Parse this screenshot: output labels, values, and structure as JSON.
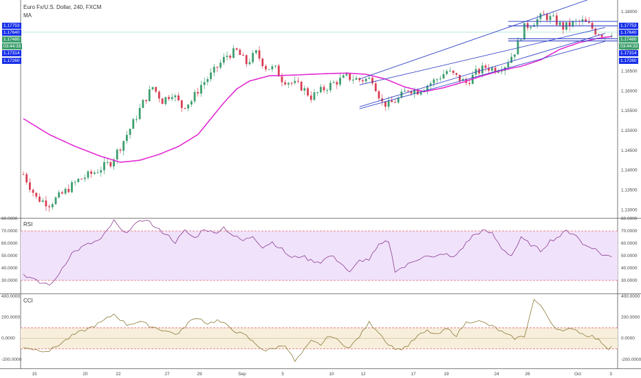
{
  "header": {
    "symbol": "Euro Fx/U.S. Dollar, 240, FXCM",
    "indicator": "MA"
  },
  "colors": {
    "up": "#3c9e6e",
    "down": "#d83e51",
    "ma": "#e22ad2",
    "channel": "#3545c8",
    "rsi_line": "#8a3b8f",
    "rsi_fill": "#f0e2fb",
    "cci_line": "#8b7a36",
    "cci_fill": "#f7eedc",
    "cci_band": "#e06565",
    "tag_blue": "#1830e8",
    "tag_green": "#3c9e6e"
  },
  "price_tags_left": [
    "1.17753",
    "1.17640",
    "1.17480",
    "03:44:33",
    "1.17314",
    "1.17260"
  ],
  "price_tags_right": [
    "1.17753",
    "1.17640",
    "1.17480",
    "03:44:33",
    "1.17314",
    "1.17260"
  ],
  "x_axis_labels": [
    "15",
    "20",
    "22",
    "27",
    "29",
    "Sep",
    "5",
    "10",
    "12",
    "17",
    "19",
    "24",
    "26",
    "Oct",
    "3"
  ],
  "chart_data": [
    {
      "type": "candlestick",
      "title": "Euro Fx/U.S. Dollar, 240, FXCM",
      "y_ticks": [
        "1.18000",
        "1.17500",
        "1.17000",
        "1.16500",
        "1.16000",
        "1.15500",
        "1.15000",
        "1.14500",
        "1.14000",
        "1.13500",
        "1.13000"
      ],
      "ylim": [
        1.1285,
        1.1805
      ],
      "x_labels": [
        "15",
        "20",
        "22",
        "27",
        "29",
        "Sep",
        "5",
        "10",
        "12",
        "17",
        "19",
        "24",
        "26",
        "Oct",
        "3"
      ],
      "close_path": [
        [
          0,
          1.139
        ],
        [
          4,
          1.133
        ],
        [
          8,
          1.1315
        ],
        [
          12,
          1.134
        ],
        [
          17,
          1.1375
        ],
        [
          22,
          1.1395
        ],
        [
          27,
          1.142
        ],
        [
          30,
          1.146
        ],
        [
          34,
          1.152
        ],
        [
          37,
          1.157
        ],
        [
          40,
          1.161
        ],
        [
          43,
          1.1575
        ],
        [
          46,
          1.1595
        ],
        [
          49,
          1.156
        ],
        [
          52,
          1.1575
        ],
        [
          55,
          1.1615
        ],
        [
          58,
          1.164
        ],
        [
          61,
          1.167
        ],
        [
          63,
          1.169
        ],
        [
          66,
          1.17
        ],
        [
          69,
          1.167
        ],
        [
          72,
          1.1695
        ],
        [
          75,
          1.166
        ],
        [
          78,
          1.1655
        ],
        [
          80,
          1.163
        ],
        [
          83,
          1.162
        ],
        [
          86,
          1.161
        ],
        [
          89,
          1.1585
        ],
        [
          92,
          1.16
        ],
        [
          96,
          1.162
        ],
        [
          100,
          1.1635
        ],
        [
          104,
          1.1628
        ],
        [
          108,
          1.163
        ],
        [
          111,
          1.157
        ],
        [
          113,
          1.1565
        ],
        [
          116,
          1.158
        ],
        [
          119,
          1.1605
        ],
        [
          122,
          1.16
        ],
        [
          125,
          1.1615
        ],
        [
          128,
          1.163
        ],
        [
          131,
          1.165
        ],
        [
          134,
          1.1635
        ],
        [
          137,
          1.162
        ],
        [
          140,
          1.1645
        ],
        [
          143,
          1.166
        ],
        [
          146,
          1.1655
        ],
        [
          149,
          1.1665
        ],
        [
          152,
          1.17
        ],
        [
          155,
          1.176
        ],
        [
          158,
          1.1775
        ],
        [
          161,
          1.179
        ],
        [
          164,
          1.178
        ],
        [
          167,
          1.176
        ],
        [
          170,
          1.177
        ],
        [
          173,
          1.1775
        ],
        [
          175,
          1.1765
        ],
        [
          177,
          1.175
        ],
        [
          180,
          1.174
        ],
        [
          182,
          1.1748
        ]
      ],
      "ma_path": [
        [
          0,
          1.153
        ],
        [
          8,
          1.149
        ],
        [
          16,
          1.146
        ],
        [
          24,
          1.1435
        ],
        [
          30,
          1.142
        ],
        [
          36,
          1.1425
        ],
        [
          42,
          1.144
        ],
        [
          48,
          1.146
        ],
        [
          54,
          1.149
        ],
        [
          58,
          1.153
        ],
        [
          62,
          1.157
        ],
        [
          66,
          1.1605
        ],
        [
          70,
          1.1625
        ],
        [
          76,
          1.1638
        ],
        [
          84,
          1.164
        ],
        [
          92,
          1.1643
        ],
        [
          100,
          1.1645
        ],
        [
          106,
          1.1642
        ],
        [
          112,
          1.163
        ],
        [
          118,
          1.161
        ],
        [
          124,
          1.1598
        ],
        [
          130,
          1.1608
        ],
        [
          136,
          1.1622
        ],
        [
          142,
          1.1638
        ],
        [
          148,
          1.1652
        ],
        [
          154,
          1.1662
        ],
        [
          160,
          1.1678
        ],
        [
          166,
          1.1705
        ],
        [
          172,
          1.1722
        ],
        [
          178,
          1.1733
        ],
        [
          182,
          1.1737
        ]
      ],
      "horizontal_levels": [
        1.17753,
        1.1764,
        1.17314,
        1.1726
      ],
      "channel_lines": [
        [
          [
            104,
            1.163
          ],
          [
            180,
            1.1845
          ]
        ],
        [
          [
            104,
            1.1615
          ],
          [
            180,
            1.176
          ]
        ],
        [
          [
            104,
            1.156
          ],
          [
            180,
            1.1745
          ]
        ],
        [
          [
            104,
            1.1555
          ],
          [
            180,
            1.1725
          ]
        ]
      ]
    },
    {
      "type": "line",
      "title": "RSI",
      "y_ticks": [
        "80.0000",
        "70.0000",
        "60.0000",
        "50.0000",
        "40.0000",
        "30.0000"
      ],
      "ylim": [
        20,
        80
      ],
      "bands": [
        70,
        30
      ],
      "path": [
        [
          0,
          35
        ],
        [
          5,
          28
        ],
        [
          9,
          27
        ],
        [
          12,
          40
        ],
        [
          15,
          52
        ],
        [
          19,
          58
        ],
        [
          24,
          63
        ],
        [
          28,
          78
        ],
        [
          31,
          68
        ],
        [
          34,
          74
        ],
        [
          38,
          80
        ],
        [
          41,
          72
        ],
        [
          44,
          68
        ],
        [
          47,
          61
        ],
        [
          50,
          70
        ],
        [
          53,
          64
        ],
        [
          56,
          72
        ],
        [
          59,
          68
        ],
        [
          62,
          73
        ],
        [
          65,
          66
        ],
        [
          68,
          62
        ],
        [
          71,
          66
        ],
        [
          74,
          57
        ],
        [
          77,
          61
        ],
        [
          80,
          55
        ],
        [
          83,
          48
        ],
        [
          86,
          50
        ],
        [
          89,
          46
        ],
        [
          92,
          45
        ],
        [
          95,
          50
        ],
        [
          98,
          45
        ],
        [
          101,
          36
        ],
        [
          104,
          46
        ],
        [
          107,
          47
        ],
        [
          110,
          58
        ],
        [
          113,
          62
        ],
        [
          115,
          38
        ],
        [
          118,
          41
        ],
        [
          121,
          46
        ],
        [
          124,
          50
        ],
        [
          127,
          48
        ],
        [
          130,
          52
        ],
        [
          133,
          48
        ],
        [
          136,
          57
        ],
        [
          139,
          66
        ],
        [
          142,
          70
        ],
        [
          145,
          68
        ],
        [
          148,
          56
        ],
        [
          151,
          50
        ],
        [
          154,
          64
        ],
        [
          157,
          59
        ],
        [
          160,
          54
        ],
        [
          163,
          62
        ],
        [
          166,
          66
        ],
        [
          168,
          70
        ],
        [
          171,
          67
        ],
        [
          173,
          59
        ],
        [
          176,
          57
        ],
        [
          179,
          51
        ],
        [
          182,
          49
        ]
      ]
    },
    {
      "type": "line",
      "title": "CCI",
      "y_ticks": [
        "400.0000",
        "200.0000",
        "0.0000",
        "-200.0000"
      ],
      "ylim": [
        -280,
        420
      ],
      "bands": [
        100,
        -100
      ],
      "path": [
        [
          0,
          -80
        ],
        [
          4,
          -110
        ],
        [
          8,
          -120
        ],
        [
          12,
          -40
        ],
        [
          16,
          40
        ],
        [
          20,
          90
        ],
        [
          24,
          150
        ],
        [
          28,
          230
        ],
        [
          32,
          130
        ],
        [
          36,
          160
        ],
        [
          39,
          120
        ],
        [
          42,
          90
        ],
        [
          45,
          60
        ],
        [
          48,
          40
        ],
        [
          51,
          150
        ],
        [
          54,
          200
        ],
        [
          57,
          140
        ],
        [
          60,
          170
        ],
        [
          63,
          120
        ],
        [
          66,
          60
        ],
        [
          69,
          20
        ],
        [
          72,
          -60
        ],
        [
          75,
          -120
        ],
        [
          78,
          -90
        ],
        [
          81,
          -60
        ],
        [
          84,
          -220
        ],
        [
          86,
          -150
        ],
        [
          89,
          -30
        ],
        [
          92,
          -60
        ],
        [
          95,
          30
        ],
        [
          98,
          -40
        ],
        [
          101,
          -90
        ],
        [
          104,
          20
        ],
        [
          107,
          150
        ],
        [
          110,
          60
        ],
        [
          113,
          -60
        ],
        [
          116,
          -110
        ],
        [
          119,
          -70
        ],
        [
          122,
          20
        ],
        [
          125,
          70
        ],
        [
          128,
          30
        ],
        [
          131,
          90
        ],
        [
          134,
          30
        ],
        [
          137,
          150
        ],
        [
          140,
          170
        ],
        [
          143,
          140
        ],
        [
          146,
          100
        ],
        [
          149,
          40
        ],
        [
          152,
          0
        ],
        [
          155,
          20
        ],
        [
          158,
          370
        ],
        [
          161,
          270
        ],
        [
          164,
          120
        ],
        [
          167,
          60
        ],
        [
          170,
          100
        ],
        [
          173,
          40
        ],
        [
          176,
          20
        ],
        [
          179,
          -40
        ],
        [
          181,
          -100
        ],
        [
          182,
          -60
        ]
      ]
    }
  ]
}
